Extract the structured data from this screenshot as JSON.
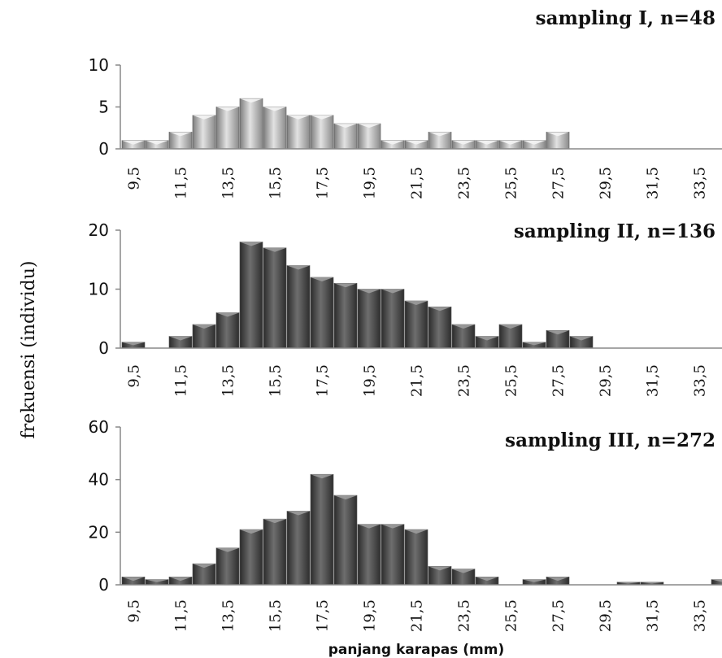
{
  "chart_data": {
    "type": "bar",
    "ylabel": "frekuensi (individu)",
    "xlabel": "panjang karapas (mm)",
    "categories": [
      "9,5",
      "10,5",
      "11,5",
      "12,5",
      "13,5",
      "14,5",
      "15,5",
      "16,5",
      "17,5",
      "18,5",
      "19,5",
      "20,5",
      "21,5",
      "22,5",
      "23,5",
      "24,5",
      "25,5",
      "26,5",
      "27,5",
      "28,5",
      "29,5",
      "30,5",
      "31,5",
      "32,5",
      "33,5",
      "34,5"
    ],
    "tick_labels": [
      "9,5",
      "11,5",
      "13,5",
      "15,5",
      "17,5",
      "19,5",
      "21,5",
      "23,5",
      "25,5",
      "27,5",
      "29,5",
      "31,5",
      "33,5"
    ],
    "panels": [
      {
        "title": "sampling I, n=48",
        "ylim": [
          0,
          10
        ],
        "yticks": [
          "0",
          "5",
          "10"
        ],
        "color": "#9a9a9a",
        "values": [
          1,
          1,
          2,
          4,
          5,
          6,
          5,
          4,
          4,
          3,
          3,
          1,
          1,
          2,
          1,
          1,
          1,
          1,
          2,
          0,
          0,
          0,
          0,
          0,
          0,
          0
        ]
      },
      {
        "title": "sampling II, n=136",
        "ylim": [
          0,
          20
        ],
        "yticks": [
          "0",
          "10",
          "20"
        ],
        "color": "#4a4a4a",
        "values": [
          1,
          0,
          2,
          4,
          6,
          18,
          17,
          14,
          12,
          11,
          10,
          10,
          8,
          7,
          4,
          2,
          4,
          1,
          3,
          2,
          0,
          0,
          0,
          0,
          0,
          0
        ]
      },
      {
        "title": "sampling III,  n=272",
        "ylim": [
          0,
          60
        ],
        "yticks": [
          "0",
          "20",
          "40",
          "60"
        ],
        "color": "#4a4a4a",
        "values": [
          3,
          2,
          3,
          8,
          14,
          21,
          25,
          28,
          42,
          34,
          23,
          23,
          21,
          7,
          6,
          3,
          0,
          2,
          3,
          0,
          0,
          1,
          1,
          0,
          0,
          2
        ]
      }
    ]
  }
}
